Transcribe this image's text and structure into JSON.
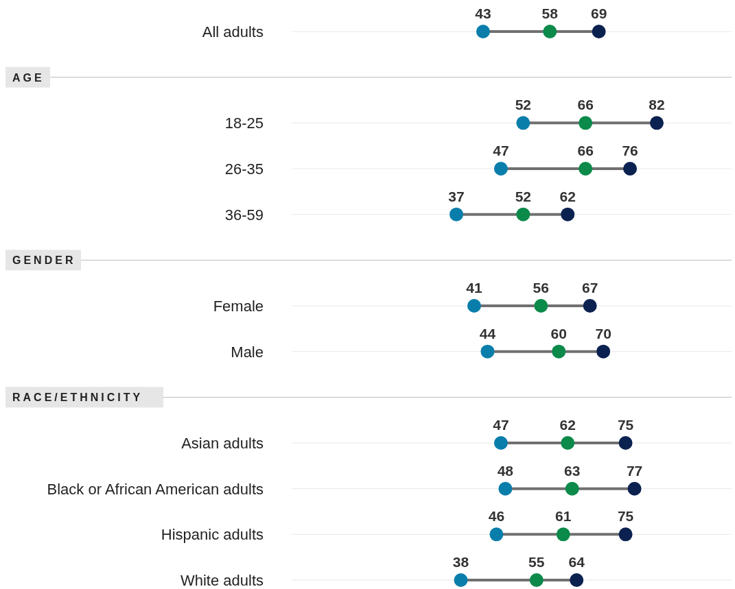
{
  "chart_data": {
    "type": "scatter",
    "orientation": "horizontal",
    "categories": [
      "All adults",
      null,
      "18-25",
      "26-35",
      "36-59",
      null,
      "Female",
      "Male",
      null,
      "Asian adults",
      "Black or African American adults",
      "Hispanic adults",
      "White adults"
    ],
    "annotations": [
      "AGE",
      "GENDER",
      "RACE/ETHNICITY"
    ],
    "grid": "y",
    "marker": "circle",
    "data_labels": true,
    "series": [
      {
        "color": "#0a7eab",
        "values": [
          43,
          null,
          52,
          47,
          37,
          null,
          41,
          44,
          null,
          47,
          48,
          46,
          38
        ]
      },
      {
        "color": "#0b8a4a",
        "values": [
          58,
          null,
          66,
          66,
          52,
          null,
          56,
          60,
          null,
          62,
          63,
          61,
          55
        ]
      },
      {
        "color": "#0b2250",
        "values": [
          69,
          null,
          82,
          76,
          62,
          null,
          67,
          70,
          null,
          75,
          77,
          75,
          64
        ]
      }
    ]
  }
}
